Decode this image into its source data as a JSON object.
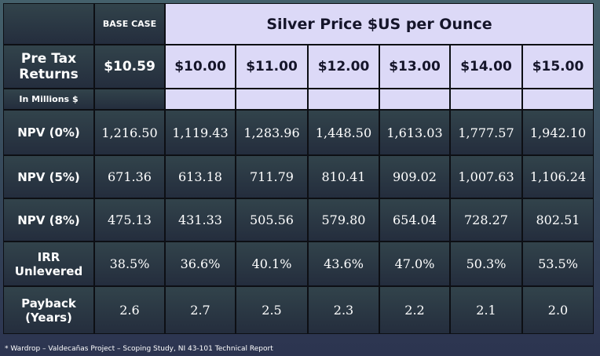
{
  "header": {
    "base_case_label": "BASE CASE",
    "price_heading": "Silver Price $US per Ounce",
    "row_label": "Pre Tax Returns",
    "units": "In Millions $",
    "base_price": "$10.59",
    "prices": [
      "$10.00",
      "$11.00",
      "$12.00",
      "$13.00",
      "$14.00",
      "$15.00"
    ]
  },
  "rows": [
    {
      "label": "NPV (0%)",
      "values": [
        "1,216.50",
        "1,119.43",
        "1,283.96",
        "1,448.50",
        "1,613.03",
        "1,777.57",
        "1,942.10"
      ]
    },
    {
      "label": "NPV (5%)",
      "values": [
        "671.36",
        "613.18",
        "711.79",
        "810.41",
        "909.02",
        "1,007.63",
        "1,106.24"
      ]
    },
    {
      "label": "NPV (8%)",
      "values": [
        "475.13",
        "431.33",
        "505.56",
        "579.80",
        "654.04",
        "728.27",
        "802.51"
      ]
    },
    {
      "label": "IRR Unlevered",
      "values": [
        "38.5%",
        "36.6%",
        "40.1%",
        "43.6%",
        "47.0%",
        "50.3%",
        "53.5%"
      ]
    },
    {
      "label": "Payback (Years)",
      "values": [
        "2.6",
        "2.7",
        "2.5",
        "2.3",
        "2.2",
        "2.1",
        "2.0"
      ]
    }
  ],
  "footnote": "* Wardrop – Valdecañas Project – Scoping Study, NI 43-101 Technical Report"
}
